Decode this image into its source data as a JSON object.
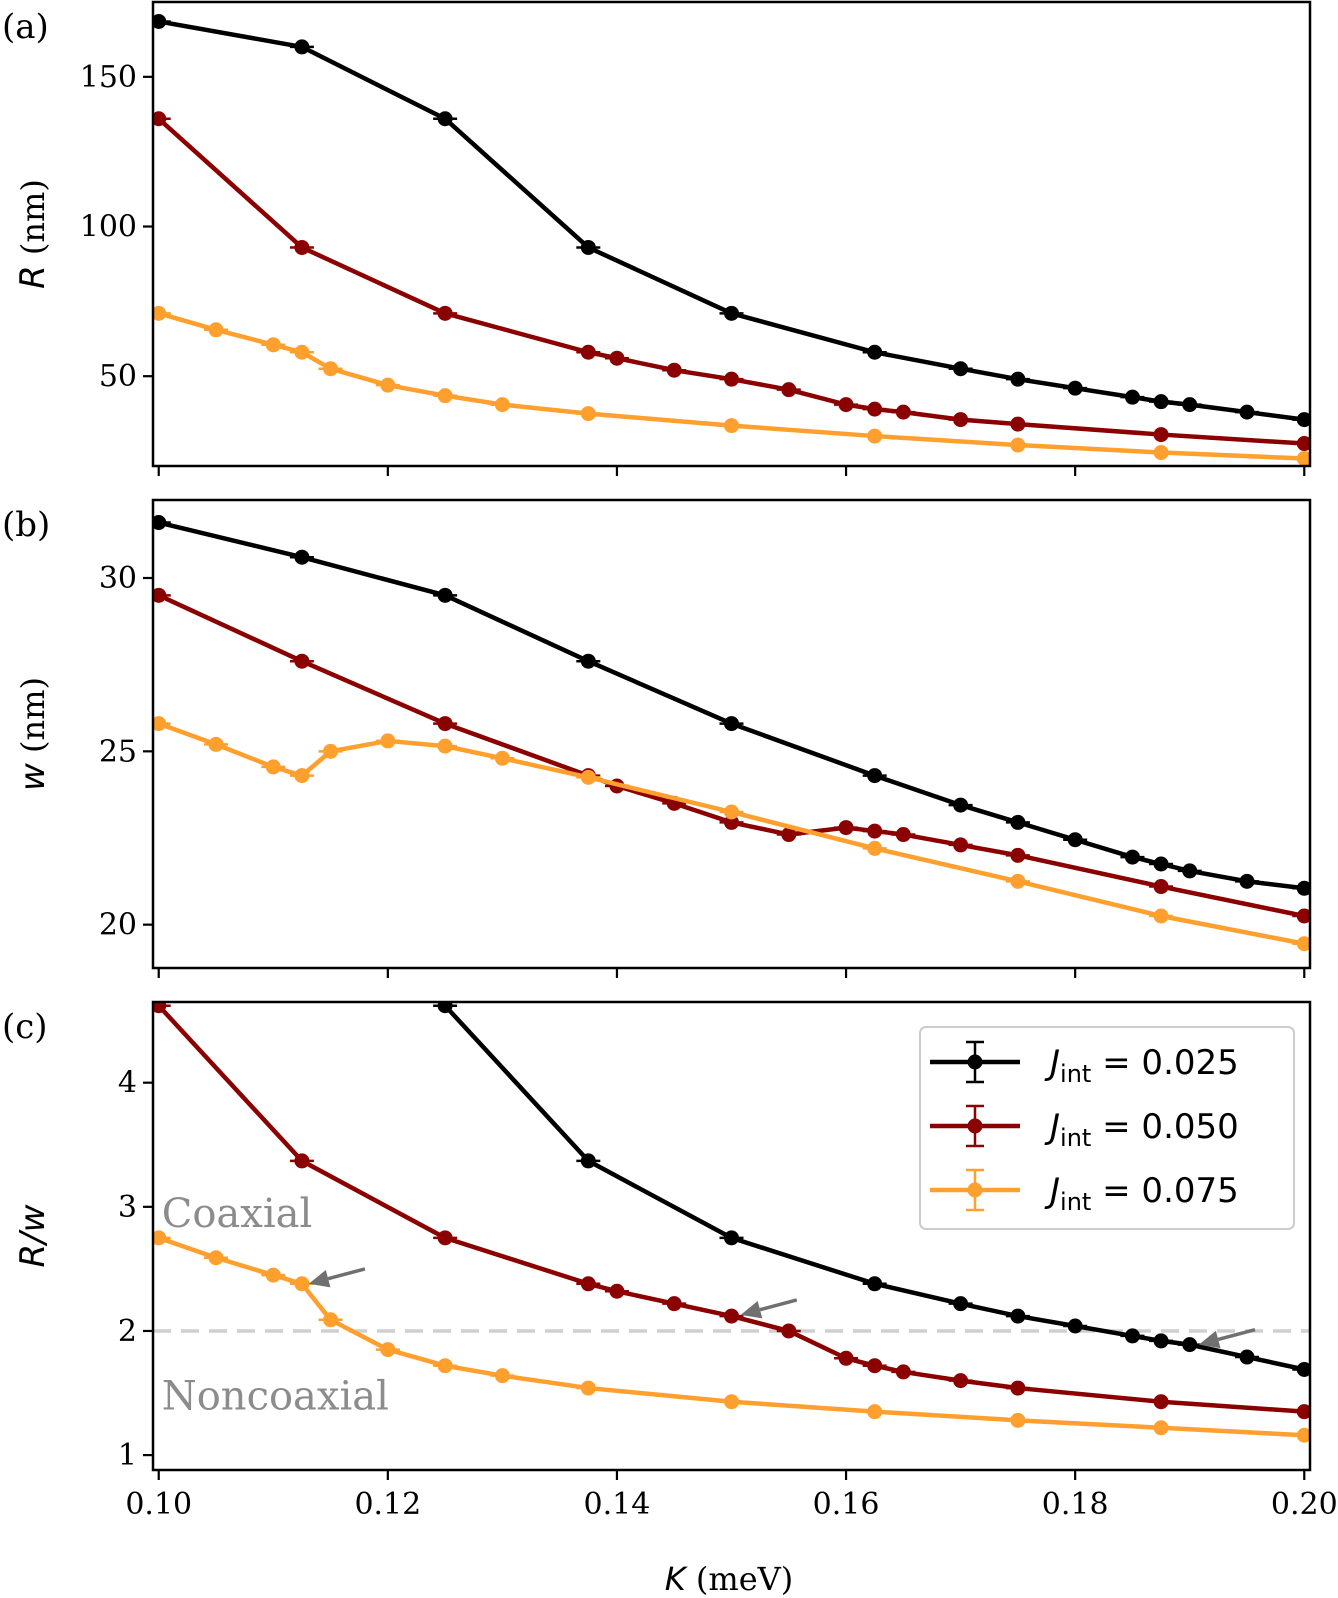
{
  "chart_data": {
    "type": "line",
    "xlabel_symbol": "K",
    "xlabel_unit": " (meV)",
    "x_ticks": [
      "0.10",
      "0.12",
      "0.14",
      "0.16",
      "0.18",
      "0.20"
    ],
    "colors": {
      "J025": "#000000",
      "J050": "#8b0000",
      "J075": "#ff9f2e",
      "reference": "#cfcfcf",
      "annotation": "#8c8c8c"
    },
    "legend": [
      {
        "symbol": "J",
        "sub": "int",
        "rest": " = 0.025",
        "color": "#000000"
      },
      {
        "symbol": "J",
        "sub": "int",
        "rest": " = 0.050",
        "color": "#8b0000"
      },
      {
        "symbol": "J",
        "sub": "int",
        "rest": " = 0.075",
        "color": "#ff9f2e"
      }
    ],
    "panels": [
      {
        "label": "(a)",
        "ylabel_symbol": "R",
        "ylabel_unit": " (nm)",
        "xlim": [
          0.0995,
          0.2005
        ],
        "ylim": [
          20,
          175
        ],
        "y_ticks": [
          50,
          100,
          150
        ],
        "series": [
          {
            "name": "J_int = 0.025",
            "color": "#000000",
            "x": [
              0.1,
              0.1125,
              0.125,
              0.1375,
              0.15,
              0.1625,
              0.17,
              0.175,
              0.18,
              0.185,
              0.1875,
              0.19,
              0.195,
              0.2
            ],
            "y": [
              168.5,
              160,
              136,
              93,
              71,
              58,
              52.5,
              49,
              46,
              43,
              41.5,
              40.5,
              38,
              35.5
            ]
          },
          {
            "name": "J_int = 0.050",
            "color": "#8b0000",
            "x": [
              0.1,
              0.1125,
              0.125,
              0.1375,
              0.14,
              0.145,
              0.15,
              0.155,
              0.16,
              0.1625,
              0.165,
              0.17,
              0.175,
              0.1875,
              0.2
            ],
            "y": [
              136,
              93,
              71,
              58,
              56,
              52,
              49,
              45.5,
              40.5,
              39,
              38,
              35.5,
              34,
              30.5,
              27.5
            ]
          },
          {
            "name": "J_int = 0.075",
            "color": "#ff9f2e",
            "x": [
              0.1,
              0.105,
              0.11,
              0.1125,
              0.115,
              0.12,
              0.125,
              0.13,
              0.1375,
              0.15,
              0.1625,
              0.175,
              0.1875,
              0.2
            ],
            "y": [
              71,
              65.5,
              60.5,
              58,
              52.5,
              47,
              43.5,
              40.5,
              37.5,
              33.5,
              30,
              27,
              24.5,
              22.5
            ]
          }
        ]
      },
      {
        "label": "(b)",
        "ylabel_symbol": "w",
        "ylabel_unit": " (nm)",
        "xlim": [
          0.0995,
          0.2005
        ],
        "ylim": [
          18.75,
          32.25
        ],
        "y_ticks": [
          20,
          25,
          30
        ],
        "series": [
          {
            "name": "J_int = 0.025",
            "color": "#000000",
            "x": [
              0.1,
              0.1125,
              0.125,
              0.1375,
              0.15,
              0.1625,
              0.17,
              0.175,
              0.18,
              0.185,
              0.1875,
              0.19,
              0.195,
              0.2
            ],
            "y": [
              31.6,
              30.6,
              29.5,
              27.6,
              25.8,
              24.3,
              23.45,
              22.95,
              22.45,
              21.95,
              21.75,
              21.55,
              21.25,
              21.05
            ]
          },
          {
            "name": "J_int = 0.050",
            "color": "#8b0000",
            "x": [
              0.1,
              0.1125,
              0.125,
              0.1375,
              0.14,
              0.145,
              0.15,
              0.155,
              0.16,
              0.1625,
              0.165,
              0.17,
              0.175,
              0.1875,
              0.2
            ],
            "y": [
              29.5,
              27.6,
              25.8,
              24.3,
              24.0,
              23.5,
              22.95,
              22.6,
              22.8,
              22.7,
              22.6,
              22.3,
              22.0,
              21.1,
              20.25
            ]
          },
          {
            "name": "J_int = 0.075",
            "color": "#ff9f2e",
            "x": [
              0.1,
              0.105,
              0.11,
              0.1125,
              0.115,
              0.12,
              0.125,
              0.13,
              0.1375,
              0.15,
              0.1625,
              0.175,
              0.1875,
              0.2
            ],
            "y": [
              25.8,
              25.2,
              24.55,
              24.3,
              25.0,
              25.3,
              25.15,
              24.8,
              24.25,
              23.25,
              22.2,
              21.25,
              20.25,
              19.45
            ]
          }
        ]
      },
      {
        "label": "(c)",
        "ylabel_symbol": "R/w",
        "ylabel_unit": "",
        "xlim": [
          0.0995,
          0.2005
        ],
        "ylim": [
          0.88,
          4.65
        ],
        "y_ticks": [
          1,
          2,
          3,
          4
        ],
        "reference_line": 2.0,
        "annotations": [
          {
            "text": "Coaxial",
            "x": 0.1,
            "y": 2.95
          },
          {
            "text": "Noncoaxial",
            "x": 0.1,
            "y": 1.48
          }
        ],
        "arrows": [
          {
            "x": 0.1131,
            "y": 2.38,
            "from_x": 0.118,
            "from_y": 2.5
          },
          {
            "x": 0.1508,
            "y": 2.13,
            "from_x": 0.1557,
            "from_y": 2.25
          },
          {
            "x": 0.1908,
            "y": 1.89,
            "from_x": 0.1957,
            "from_y": 2.01
          }
        ],
        "series": [
          {
            "name": "J_int = 0.025",
            "color": "#000000",
            "x": [
              0.125,
              0.1375,
              0.15,
              0.1625,
              0.17,
              0.175,
              0.18,
              0.185,
              0.1875,
              0.19,
              0.195,
              0.2
            ],
            "y": [
              4.62,
              3.37,
              2.75,
              2.38,
              2.22,
              2.12,
              2.04,
              1.96,
              1.92,
              1.89,
              1.79,
              1.69
            ]
          },
          {
            "name": "J_int = 0.050",
            "color": "#8b0000",
            "x": [
              0.1,
              0.1125,
              0.125,
              0.1375,
              0.14,
              0.145,
              0.15,
              0.155,
              0.16,
              0.1625,
              0.165,
              0.17,
              0.175,
              0.1875,
              0.2
            ],
            "y": [
              4.62,
              3.37,
              2.75,
              2.38,
              2.32,
              2.22,
              2.12,
              2.0,
              1.78,
              1.72,
              1.67,
              1.6,
              1.54,
              1.43,
              1.35
            ]
          },
          {
            "name": "J_int = 0.075",
            "color": "#ff9f2e",
            "x": [
              0.1,
              0.105,
              0.11,
              0.1125,
              0.115,
              0.12,
              0.125,
              0.13,
              0.1375,
              0.15,
              0.1625,
              0.175,
              0.1875,
              0.2
            ],
            "y": [
              2.75,
              2.59,
              2.45,
              2.38,
              2.09,
              1.85,
              1.72,
              1.64,
              1.54,
              1.43,
              1.35,
              1.28,
              1.22,
              1.16
            ]
          }
        ]
      }
    ]
  }
}
